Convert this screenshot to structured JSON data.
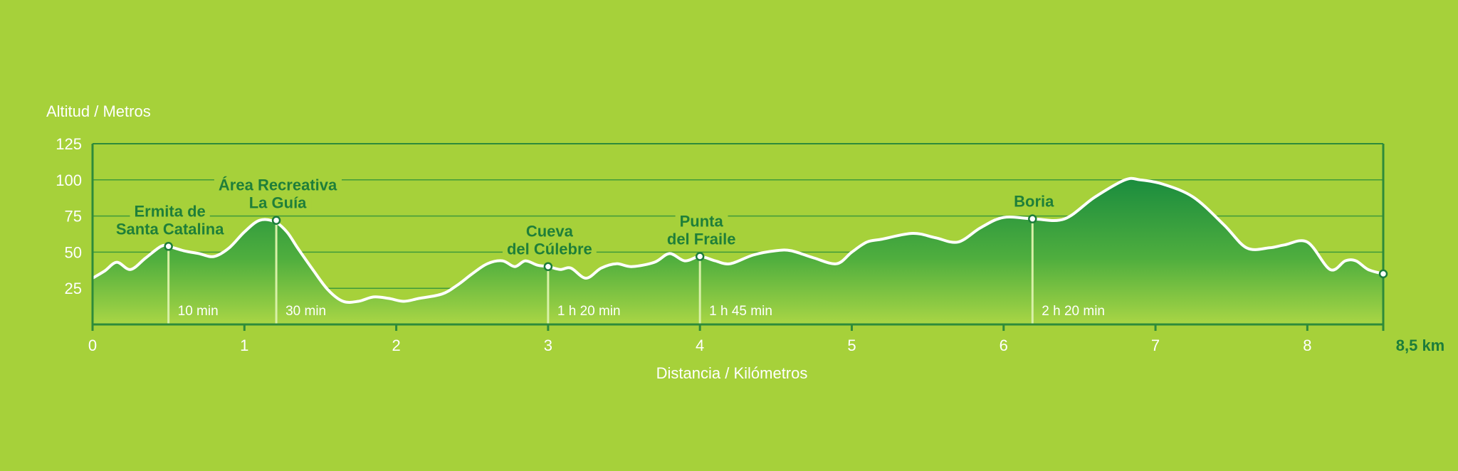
{
  "colors": {
    "background": "#a6d13a",
    "grid": "#3f9a3a",
    "axis": "#2e8b3a",
    "dark_green": "#1c7d3a",
    "fill_top": "#1a8c3e",
    "fill_bottom": "#a9d645",
    "line": "#ffffff",
    "label_green": "#1f7f39",
    "white_text": "#ffffff"
  },
  "chart_data": {
    "type": "area",
    "ylabel": "Altitud / Metros",
    "xlabel": "Distancia / Kilómetros",
    "xlim": [
      0,
      8.5
    ],
    "ylim": [
      0,
      125
    ],
    "y_ticks": [
      "25",
      "50",
      "75",
      "100",
      "125"
    ],
    "x_ticks": [
      "0",
      "1",
      "2",
      "3",
      "4",
      "5",
      "6",
      "7",
      "8"
    ],
    "x_end_label": "8,5 km",
    "grid": true,
    "profile": {
      "x": [
        0,
        0.08,
        0.16,
        0.25,
        0.35,
        0.45,
        0.5,
        0.6,
        0.7,
        0.8,
        0.9,
        1.0,
        1.1,
        1.2,
        1.28,
        1.35,
        1.45,
        1.55,
        1.65,
        1.75,
        1.85,
        1.95,
        2.05,
        2.15,
        2.3,
        2.4,
        2.5,
        2.6,
        2.7,
        2.78,
        2.85,
        2.93,
        3.0,
        3.08,
        3.15,
        3.25,
        3.35,
        3.45,
        3.55,
        3.7,
        3.8,
        3.9,
        4.0,
        4.1,
        4.2,
        4.35,
        4.5,
        4.6,
        4.75,
        4.9,
        5.0,
        5.1,
        5.2,
        5.4,
        5.55,
        5.7,
        5.85,
        6.0,
        6.2,
        6.4,
        6.6,
        6.8,
        6.9,
        7.05,
        7.25,
        7.45,
        7.6,
        7.75,
        7.85,
        8.0,
        8.15,
        8.25,
        8.32,
        8.4,
        8.5
      ],
      "y": [
        32,
        37,
        43,
        38,
        46,
        54,
        54,
        51,
        49,
        47,
        53,
        64,
        72,
        71,
        64,
        53,
        38,
        24,
        16,
        16,
        19,
        18,
        16,
        18,
        21,
        27,
        35,
        42,
        44,
        40,
        44,
        41,
        40,
        38,
        39,
        32,
        39,
        42,
        40,
        43,
        49,
        44,
        47,
        44,
        42,
        48,
        51,
        51,
        46,
        42,
        50,
        57,
        59,
        63,
        60,
        57,
        67,
        74,
        73,
        73,
        88,
        100,
        100,
        97,
        88,
        69,
        53,
        53,
        55,
        57,
        38,
        44,
        44,
        38,
        35
      ]
    },
    "waypoints": [
      {
        "name": "Ermita de Santa Catalina",
        "line1": "Ermita de",
        "line2": "Santa Catalina",
        "x": 0.5,
        "y": 54,
        "time": "10 min"
      },
      {
        "name": "Área Recreativa La Guía",
        "line1": "Área Recreativa",
        "line2": "La Guía",
        "x": 1.21,
        "y": 72,
        "time": "30 min"
      },
      {
        "name": "Cueva del Cúlebre",
        "line1": "Cueva",
        "line2": "del Cúlebre",
        "x": 3.0,
        "y": 40,
        "time": "1 h 20 min"
      },
      {
        "name": "Punta del Fraile",
        "line1": "Punta",
        "line2": "del Fraile",
        "x": 4.0,
        "y": 47,
        "time": "1 h 45 min"
      },
      {
        "name": "Boria",
        "line1": "Boria",
        "line2": "",
        "x": 6.19,
        "y": 73,
        "time": "2 h 20 min"
      },
      {
        "name": "",
        "line1": "",
        "line2": "",
        "x": 8.5,
        "y": 35,
        "time": ""
      }
    ]
  }
}
